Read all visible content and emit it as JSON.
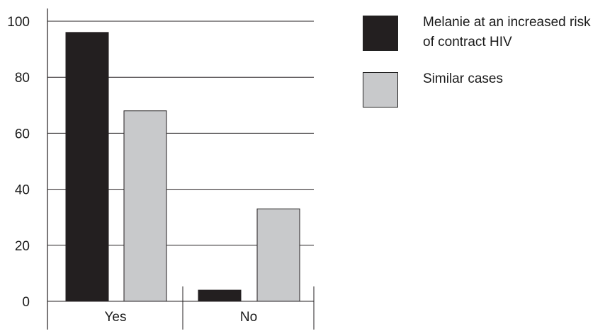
{
  "chart_data": {
    "type": "bar",
    "categories": [
      "Yes",
      "No"
    ],
    "series": [
      {
        "name": "Melanie at an increased risk of contract HIV",
        "values": [
          96,
          4
        ],
        "color": "#231f20"
      },
      {
        "name": "Similar cases",
        "values": [
          68,
          33
        ],
        "color": "#c8c9cb"
      }
    ],
    "ylim": [
      0,
      100
    ],
    "yticks": [
      "0",
      "20",
      "40",
      "60",
      "80",
      "100"
    ],
    "grid": true,
    "legend_position": "right"
  }
}
